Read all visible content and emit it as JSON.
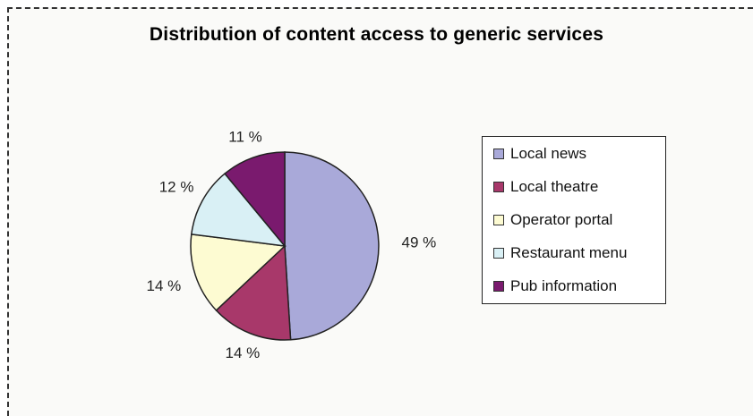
{
  "chart_data": {
    "type": "pie",
    "title": "Distribution of content access to generic services",
    "categories": [
      "Local news",
      "Local theatre",
      "Operator portal",
      "Restaurant menu",
      "Pub information"
    ],
    "values": [
      49,
      14,
      14,
      12,
      11
    ],
    "labels": [
      "49 %",
      "14 %",
      "14 %",
      "12 %",
      "11 %"
    ],
    "colors": [
      "#a9a9d9",
      "#a8386a",
      "#fdfbd2",
      "#d9f0f5",
      "#7a1a6e"
    ],
    "legend_position": "right"
  }
}
